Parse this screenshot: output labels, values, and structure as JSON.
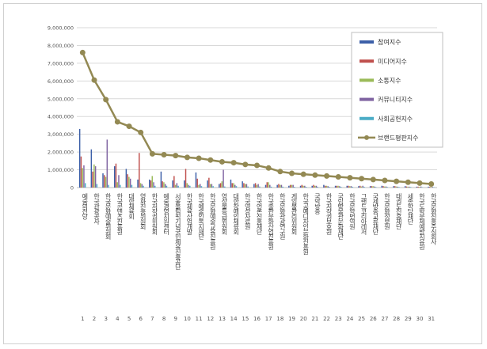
{
  "chart_data": {
    "type": "bar",
    "title": "",
    "xlabel": "",
    "ylabel": "",
    "ylim": [
      0,
      9000000
    ],
    "yticks": [
      "0",
      "1,000,000",
      "2,000,000",
      "3,000,000",
      "4,000,000",
      "5,000,000",
      "6,000,000",
      "7,000,000",
      "8,000,000",
      "9,000,000"
    ],
    "ytick_values": [
      0,
      1000000,
      2000000,
      3000000,
      4000000,
      5000000,
      6000000,
      7000000,
      8000000,
      9000000
    ],
    "grid": true,
    "legend_position": "right",
    "categories": [
      "예술의전당",
      "한국관광공사",
      "한국문화예술위원회",
      "한국콘텐츠진흥원",
      "대한체육회",
      "영화진흥위원회",
      "한국저작권위원회",
      "예술경영지원센터",
      "서울올림픽기념국민체육진흥공단",
      "한국체육산업개발",
      "한국예술인복지재단",
      "한국문화예술교육진흥원",
      "영상물등급위원회",
      "대한장애인체육회",
      "한국영상자료원",
      "한국언론진흥재단",
      "한국출판문화산업진흥원",
      "한국문화관광연구원",
      "게임물관리위원회",
      "한국공예디자인문화진흥원",
      "국악방송",
      "한국저작권보호원",
      "국립박물관문화재단",
      "한국문학번역원",
      "그랜드코리아레저",
      "국제방송교류재단",
      "한국문화정보원",
      "태권도진흥재단",
      "세종학당재단",
      "한국도박문제예방치유원",
      "한국문화진흥주식회사"
    ],
    "index_labels": [
      "1",
      "2",
      "3",
      "4",
      "5",
      "6",
      "7",
      "8",
      "9",
      "10",
      "11",
      "12",
      "13",
      "14",
      "15",
      "16",
      "17",
      "18",
      "19",
      "20",
      "21",
      "22",
      "23",
      "24",
      "25",
      "26",
      "27",
      "28",
      "29",
      "30",
      "31"
    ],
    "series": [
      {
        "name": "참여지수",
        "type": "bar",
        "color": "#3c5fa8",
        "values": [
          3300000,
          2150000,
          800000,
          1200000,
          1050000,
          450000,
          450000,
          900000,
          400000,
          400000,
          850000,
          400000,
          200000,
          450000,
          350000,
          200000,
          150000,
          150000,
          100000,
          100000,
          100000,
          150000,
          100000,
          100000,
          80000,
          80000,
          100000,
          80000,
          80000,
          50000,
          50000
        ]
      },
      {
        "name": "미디어지수",
        "type": "bar",
        "color": "#c0504d",
        "values": [
          1750000,
          900000,
          700000,
          1350000,
          750000,
          1950000,
          400000,
          350000,
          650000,
          1050000,
          500000,
          550000,
          250000,
          250000,
          250000,
          250000,
          300000,
          200000,
          150000,
          150000,
          150000,
          100000,
          100000,
          100000,
          100000,
          80000,
          80000,
          80000,
          60000,
          50000,
          40000
        ]
      },
      {
        "name": "소통지수",
        "type": "bar",
        "color": "#9bbb59",
        "values": [
          1100000,
          1300000,
          600000,
          300000,
          600000,
          250000,
          650000,
          300000,
          150000,
          250000,
          150000,
          200000,
          350000,
          250000,
          200000,
          150000,
          300000,
          150000,
          150000,
          100000,
          100000,
          100000,
          100000,
          80000,
          60000,
          80000,
          60000,
          60000,
          50000,
          40000,
          30000
        ]
      },
      {
        "name": "커뮤니티지수",
        "type": "bar",
        "color": "#8064a2",
        "values": [
          1250000,
          1200000,
          2700000,
          700000,
          500000,
          200000,
          300000,
          200000,
          250000,
          150000,
          200000,
          200000,
          1000000,
          150000,
          200000,
          200000,
          150000,
          150000,
          150000,
          100000,
          100000,
          80000,
          80000,
          80000,
          100000,
          60000,
          60000,
          50000,
          50000,
          60000,
          40000
        ]
      },
      {
        "name": "사회공헌지수",
        "type": "bar",
        "color": "#4bacc6",
        "values": [
          250000,
          200000,
          150000,
          150000,
          150000,
          100000,
          100000,
          100000,
          100000,
          100000,
          80000,
          80000,
          60000,
          80000,
          60000,
          60000,
          50000,
          50000,
          40000,
          40000,
          40000,
          40000,
          40000,
          40000,
          40000,
          30000,
          30000,
          30000,
          30000,
          20000,
          20000
        ]
      },
      {
        "name": "브랜드평판지수",
        "type": "line",
        "color": "#938953",
        "values": [
          7600000,
          6050000,
          4950000,
          3700000,
          3450000,
          3100000,
          1900000,
          1850000,
          1800000,
          1700000,
          1650000,
          1550000,
          1450000,
          1400000,
          1300000,
          1250000,
          1100000,
          900000,
          800000,
          750000,
          700000,
          650000,
          600000,
          550000,
          500000,
          450000,
          400000,
          350000,
          300000,
          250000,
          200000
        ]
      }
    ]
  }
}
